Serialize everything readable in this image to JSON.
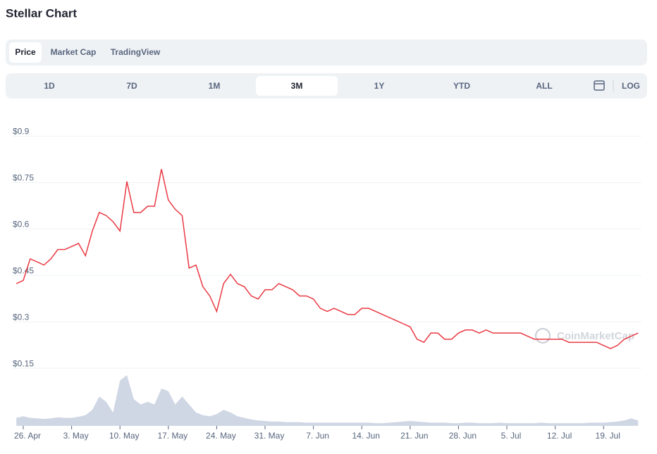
{
  "header": {
    "title": "Stellar Chart"
  },
  "tabs": {
    "items": [
      "Price",
      "Market Cap",
      "TradingView"
    ],
    "active": 0
  },
  "ranges": {
    "items": [
      "1D",
      "7D",
      "1M",
      "3M",
      "1Y",
      "YTD",
      "ALL"
    ],
    "active": 3,
    "log": "LOG"
  },
  "chart_data": {
    "type": "line",
    "watermark": "CoinMarketCap",
    "categories": [
      null,
      "26. Apr",
      null,
      null,
      null,
      null,
      null,
      null,
      "3. May",
      null,
      null,
      null,
      null,
      null,
      null,
      "10. May",
      null,
      null,
      null,
      null,
      null,
      null,
      "17. May",
      null,
      null,
      null,
      null,
      null,
      null,
      "24. May",
      null,
      null,
      null,
      null,
      null,
      null,
      "31. May",
      null,
      null,
      null,
      null,
      null,
      null,
      "7. Jun",
      null,
      null,
      null,
      null,
      null,
      null,
      "14. Jun",
      null,
      null,
      null,
      null,
      null,
      null,
      "21. Jun",
      null,
      null,
      null,
      null,
      null,
      null,
      "28. Jun",
      null,
      null,
      null,
      null,
      null,
      null,
      "5. Jul",
      null,
      null,
      null,
      null,
      null,
      null,
      "12. Jul",
      null,
      null,
      null,
      null,
      null,
      null,
      "19. Jul",
      null,
      null,
      null,
      null,
      null
    ],
    "series": [
      {
        "color": "#ea3943",
        "values": [
          0.41,
          0.42,
          0.49,
          0.48,
          0.47,
          0.49,
          0.52,
          0.52,
          0.53,
          0.54,
          0.5,
          0.58,
          0.64,
          0.63,
          0.61,
          0.58,
          0.74,
          0.64,
          0.64,
          0.66,
          0.66,
          0.78,
          0.68,
          0.65,
          0.63,
          0.46,
          0.47,
          0.4,
          0.37,
          0.32,
          0.41,
          0.44,
          0.41,
          0.4,
          0.37,
          0.36,
          0.39,
          0.39,
          0.41,
          0.4,
          0.39,
          0.37,
          0.37,
          0.36,
          0.33,
          0.32,
          0.33,
          0.32,
          0.31,
          0.31,
          0.33,
          0.33,
          0.32,
          0.31,
          0.3,
          0.29,
          0.28,
          0.27,
          0.23,
          0.22,
          0.25,
          0.25,
          0.23,
          0.23,
          0.25,
          0.26,
          0.26,
          0.25,
          0.26,
          0.25,
          0.25,
          0.25,
          0.25,
          0.25,
          0.24,
          0.23,
          0.23,
          0.23,
          0.23,
          0.23,
          0.22,
          0.22,
          0.22,
          0.22,
          0.22,
          0.21,
          0.2,
          0.21,
          0.23,
          0.24,
          0.25
        ]
      }
    ],
    "volume": {
      "color": "#cfd6e4",
      "values": [
        15,
        18,
        15,
        14,
        13,
        14,
        16,
        15,
        15,
        17,
        20,
        30,
        55,
        45,
        25,
        85,
        95,
        50,
        40,
        45,
        40,
        70,
        65,
        40,
        55,
        40,
        25,
        20,
        18,
        22,
        30,
        25,
        18,
        15,
        12,
        10,
        9,
        8,
        8,
        7,
        7,
        7,
        6,
        6,
        6,
        6,
        6,
        6,
        6,
        6,
        6,
        6,
        5,
        5,
        6,
        7,
        8,
        9,
        8,
        7,
        6,
        6,
        6,
        5,
        5,
        6,
        6,
        5,
        5,
        5,
        6,
        5,
        5,
        5,
        5,
        5,
        6,
        5,
        5,
        5,
        5,
        5,
        5,
        6,
        6,
        6,
        7,
        8,
        10,
        14,
        10
      ]
    },
    "ylim": [
      -0.05,
      0.94
    ],
    "yticks": [
      {
        "value": 0.15,
        "label": "$0.15"
      },
      {
        "value": 0.3,
        "label": "$0.3"
      },
      {
        "value": 0.45,
        "label": "$0.45"
      },
      {
        "value": 0.6,
        "label": "$0.6"
      },
      {
        "value": 0.75,
        "label": "$0.75"
      },
      {
        "value": 0.9,
        "label": "$0.9"
      }
    ],
    "grid": true
  }
}
